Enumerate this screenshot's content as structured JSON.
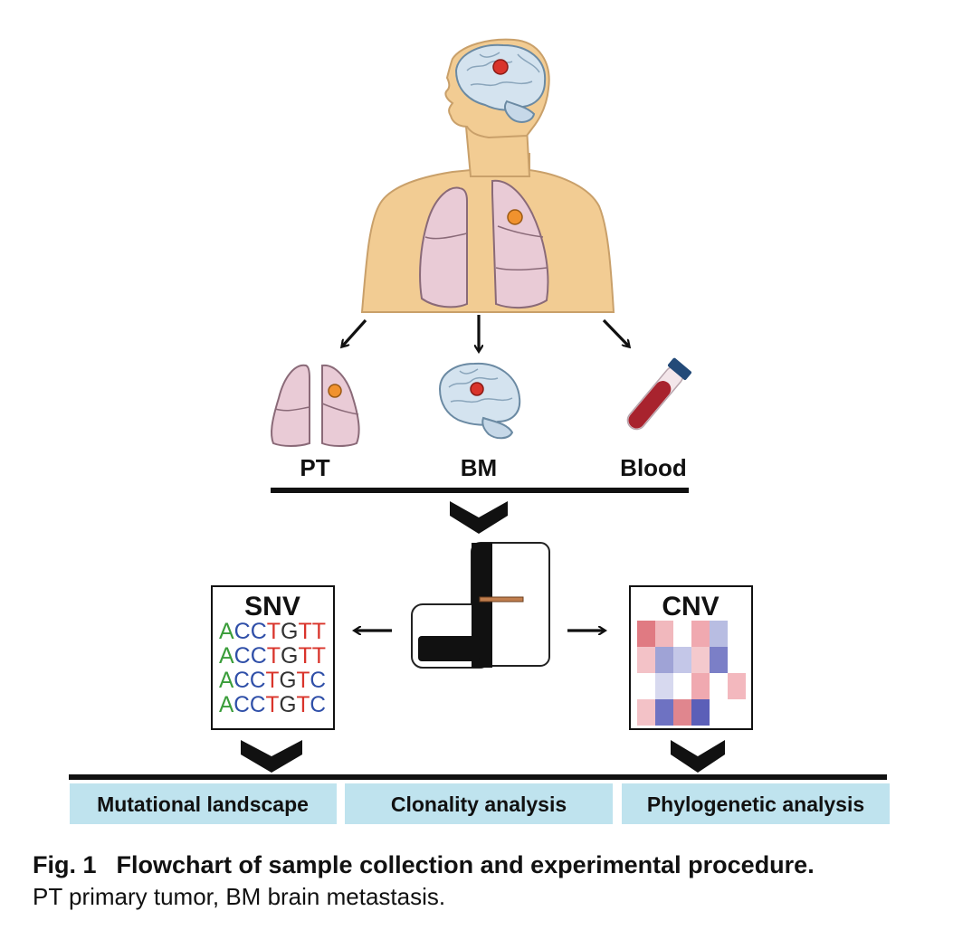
{
  "samples": [
    {
      "label": "PT",
      "icon": "lungs-icon"
    },
    {
      "label": "BM",
      "icon": "brain-icon"
    },
    {
      "label": "Blood",
      "icon": "blood-tube-icon"
    }
  ],
  "sequencer": {
    "icon": "sequencer-icon"
  },
  "snv_panel": {
    "title": "SNV",
    "sequences": [
      "ACCTGTT",
      "ACCTGTT",
      "ACCTGTC",
      "ACCTGTC"
    ],
    "base_colors": {
      "A": "#3a9d3a",
      "C": "#2f4fa8",
      "T": "#d9342b",
      "G": "#333333"
    }
  },
  "cnv_panel": {
    "title": "CNV",
    "heatmap": [
      [
        "#e07a82",
        "#f1b8bd",
        "#ffffff",
        "#f0a9b0",
        "#b8bde2",
        "#ffffff"
      ],
      [
        "#f3c2c7",
        "#9fa3d6",
        "#c4c7e8",
        "#f4c9cd",
        "#7b7fc7",
        "#ffffff"
      ],
      [
        "#ffffff",
        "#d7d9ef",
        "#ffffff",
        "#f0a9b0",
        "#ffffff",
        "#f3b8be"
      ],
      [
        "#f3c2c7",
        "#6e72c2",
        "#e0868e",
        "#5b5fb8",
        "#ffffff",
        "#ffffff"
      ]
    ]
  },
  "analyses": [
    "Mutational landscape",
    "Clonality analysis",
    "Phylogenetic analysis"
  ],
  "caption": {
    "fig_num": "Fig. 1",
    "title": "Flowchart of sample collection and experimental procedure.",
    "text": "PT primary tumor, BM brain metastasis."
  },
  "colors": {
    "analysis_box": "#bfe3ee",
    "skin": "#f2cc93",
    "lung": "#e9cbd6",
    "brain": "#d4e3ef",
    "tumor_red": "#d9342b",
    "tumor_orange": "#f0922e"
  }
}
